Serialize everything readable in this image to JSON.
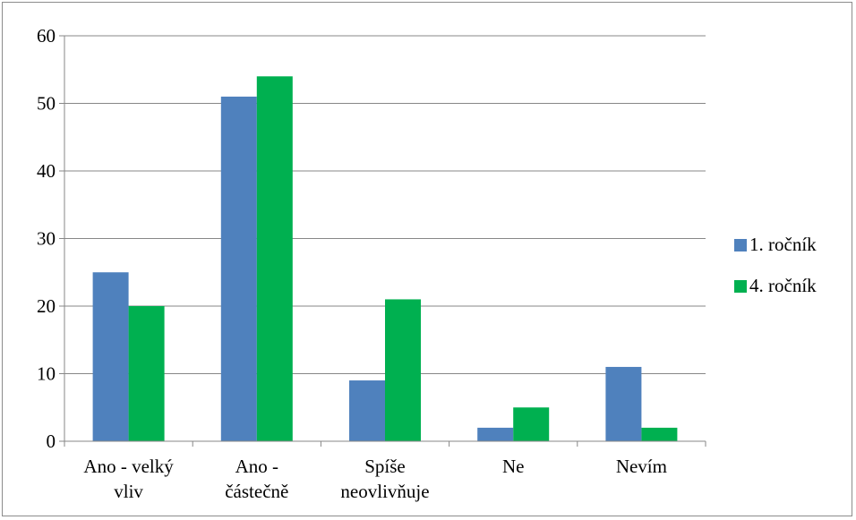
{
  "chart_data": {
    "type": "bar",
    "categories": [
      [
        "Ano - velký",
        "vliv"
      ],
      [
        "Ano -",
        "částečně"
      ],
      [
        "Spíše",
        "neovlivňuje"
      ],
      [
        "Ne"
      ],
      [
        "Nevím"
      ]
    ],
    "series": [
      {
        "name": "1. ročník",
        "color": "#4f81bd",
        "values": [
          25,
          51,
          9,
          2,
          11
        ]
      },
      {
        "name": "4. ročník",
        "color": "#00b050",
        "values": [
          20,
          54,
          21,
          5,
          2
        ]
      }
    ],
    "ylim": [
      0,
      60
    ],
    "yticks": [
      0,
      10,
      20,
      30,
      40,
      50,
      60
    ],
    "grid": true,
    "legend": "right"
  }
}
